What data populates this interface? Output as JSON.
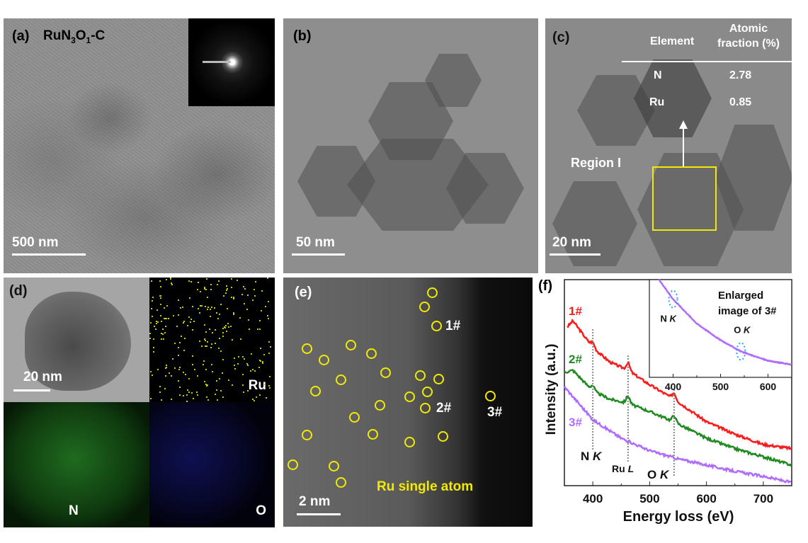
{
  "panels": {
    "a": {
      "label": "(a)",
      "sample_prefix": "RuN",
      "sub1": "3",
      "mid": "O",
      "sub2": "1",
      "suffix": "-C",
      "scale_bar": "500 nm"
    },
    "b": {
      "label": "(b)",
      "scale_bar": "50 nm"
    },
    "c": {
      "label": "(c)",
      "scale_bar": "20 nm",
      "region_label": "Region I",
      "region_box_color": "#f2ea00",
      "table": {
        "headers": [
          "Element",
          "Atomic",
          "fraction (%)"
        ],
        "rows": [
          {
            "element": "N",
            "value": "2.78"
          },
          {
            "element": "Ru",
            "value": "0.85"
          }
        ]
      }
    },
    "d": {
      "label": "(d)",
      "scale_bar": "20 nm",
      "maps": [
        {
          "element": "Ru",
          "color": "#c8c800"
        },
        {
          "element": "N",
          "color": "#22aa22"
        },
        {
          "element": "O",
          "color": "#3333cc"
        }
      ]
    },
    "e": {
      "label": "(e)",
      "scale_bar": "2 nm",
      "annotation": "Ru single atom",
      "markers": [
        "1#",
        "2#",
        "3#"
      ],
      "circle_color": "#f2ea00"
    }
  },
  "chart_data": [
    {
      "type": "line",
      "panel_label": "(f)",
      "xlabel": "Energy loss (eV)",
      "ylabel": "Intensity (a.u.)",
      "xlim": [
        350,
        750
      ],
      "xticks": [
        400,
        500,
        600,
        700
      ],
      "grid": false,
      "edge_labels": [
        {
          "x": 400,
          "text": "N",
          "italic": "K"
        },
        {
          "x": 462,
          "text": "Ru",
          "italic": "L"
        },
        {
          "x": 543,
          "text": "O",
          "italic": "K"
        }
      ],
      "series": [
        {
          "name": "1#",
          "color": "#ff1a1a",
          "x": [
            355,
            365,
            400,
            430,
            462,
            500,
            543,
            600,
            650,
            700,
            750
          ],
          "y": [
            0.77,
            0.8,
            0.67,
            0.6,
            0.56,
            0.49,
            0.42,
            0.31,
            0.25,
            0.2,
            0.18
          ]
        },
        {
          "name": "2#",
          "color": "#1f8a1f",
          "x": [
            350,
            365,
            400,
            430,
            462,
            500,
            543,
            600,
            650,
            700,
            750
          ],
          "y": [
            0.55,
            0.56,
            0.46,
            0.42,
            0.4,
            0.36,
            0.31,
            0.23,
            0.18,
            0.14,
            0.1
          ]
        },
        {
          "name": "3#",
          "color": "#b06cff",
          "x": [
            350,
            375,
            400,
            450,
            500,
            550,
            600,
            650,
            700,
            750
          ],
          "y": [
            0.48,
            0.4,
            0.32,
            0.23,
            0.17,
            0.13,
            0.1,
            0.07,
            0.045,
            0.015
          ]
        }
      ]
    },
    {
      "type": "line",
      "title": "Enlarged image of 3#",
      "title_lines": [
        "Enlarged",
        "image of 3#"
      ],
      "xlim": [
        350,
        650
      ],
      "xticks": [
        400,
        500,
        600
      ],
      "edge_labels": [
        {
          "x": 400,
          "text": "N",
          "italic": "K"
        },
        {
          "x": 543,
          "text": "O",
          "italic": "K"
        }
      ],
      "highlight_color": "#3399ff",
      "series": [
        {
          "color": "#b06cff",
          "x": [
            370,
            400,
            450,
            500,
            545,
            600,
            650
          ],
          "y": [
            1.0,
            0.8,
            0.55,
            0.38,
            0.26,
            0.17,
            0.13
          ]
        }
      ]
    }
  ]
}
